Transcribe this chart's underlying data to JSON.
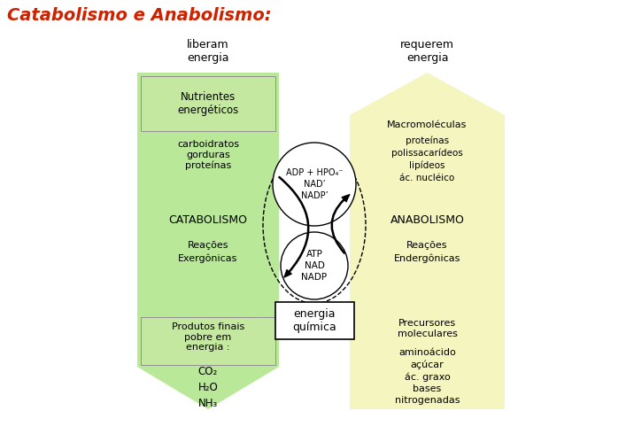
{
  "title": "Catabolismo e Anabolismo:",
  "title_color": "#cc2200",
  "bg_color": "#ffffff",
  "left_arrow_color": "#b8e898",
  "right_arrow_color": "#f5f5c0",
  "left_label_top": "liberam\nenergia",
  "right_label_top": "requerem\nenergia",
  "left_label_mid": "CATABOLISMO",
  "right_label_mid": "ANABOLISMO",
  "left_sub_mid": "Reações\nExergônicas",
  "right_sub_mid": "Reações\nEndergônicas",
  "left_top_box_text": "Nutrientes\nenergéticos",
  "right_top_text": "Macromoléculas",
  "left_top_sub": "carboidratos\ngorduras\nproteínas",
  "right_top_sub": "proteínas\npolissacarídeos\nlipídeos\nác. nucléico",
  "left_bot_box_text": "Produtos finais\npobre em\nenergia :",
  "left_bot_sub": "CO₂\nH₂O\nNH₃",
  "right_bot_text": "Precursores\nmoleculares",
  "right_bot_sub": "aminoácido\naçúcar\nác. graxo\nbases\nnitrogenadas",
  "circle_top_text": "ADP + HPO₄⁻\nNAD’\nNADP’",
  "circle_bot_text": "ATP\nNAD\nNADP",
  "energia_box_text": "energia\nquímica"
}
